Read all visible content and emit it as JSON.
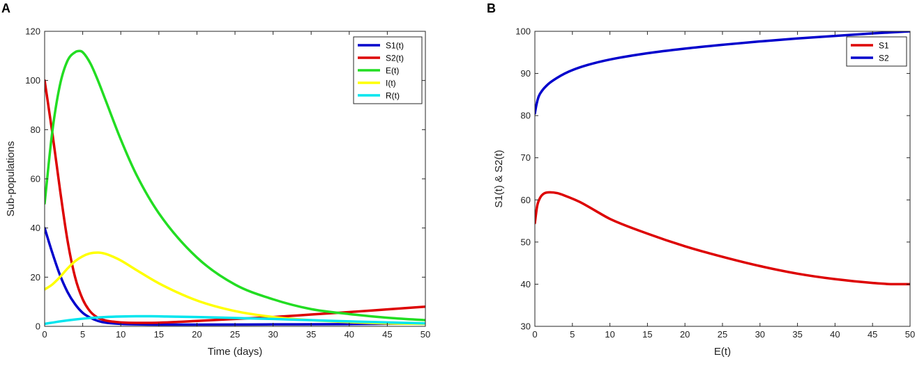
{
  "chart_data": [
    {
      "panel": "A",
      "type": "line",
      "title": "",
      "xlabel": "Time (days)",
      "ylabel": "Sub-populations",
      "xlim": [
        0,
        50
      ],
      "ylim": [
        0,
        120
      ],
      "xticks": [
        0,
        5,
        10,
        15,
        20,
        25,
        30,
        35,
        40,
        45,
        50
      ],
      "yticks": [
        0,
        20,
        40,
        60,
        80,
        100,
        120
      ],
      "legend_position": "top-right",
      "grid": false,
      "series": [
        {
          "name": "S1(t)",
          "color": "#0000cc",
          "x": [
            0,
            1,
            2,
            3,
            4,
            5,
            6,
            7,
            8,
            10,
            12,
            15,
            20,
            30,
            40,
            50
          ],
          "y": [
            40,
            30,
            21,
            14,
            9,
            5.5,
            3.5,
            2.2,
            1.5,
            1,
            0.8,
            0.7,
            0.7,
            0.8,
            0.9,
            1.2
          ]
        },
        {
          "name": "S2(t)",
          "color": "#dd0000",
          "x": [
            0,
            1,
            2,
            3,
            4,
            5,
            6,
            7,
            8,
            9,
            10,
            12,
            15,
            20,
            25,
            30,
            35,
            40,
            45,
            50
          ],
          "y": [
            100,
            79,
            56,
            35,
            20,
            11,
            6,
            3.5,
            2.4,
            1.9,
            1.6,
            1.4,
            1.5,
            2.2,
            3,
            3.8,
            4.8,
            5.8,
            6.9,
            8
          ]
        },
        {
          "name": "E(t)",
          "color": "#22dd22",
          "x": [
            0,
            1,
            2,
            3,
            4,
            4.6,
            5,
            6,
            7,
            8,
            10,
            12,
            15,
            20,
            25,
            30,
            35,
            40,
            45,
            50
          ],
          "y": [
            50,
            79,
            98,
            108,
            111.5,
            112,
            111.5,
            107,
            100,
            92,
            76,
            62,
            46,
            28,
            17,
            11,
            7,
            5,
            3.5,
            2.5
          ]
        },
        {
          "name": "I(t)",
          "color": "#ffff00",
          "x": [
            0,
            1,
            2,
            3,
            4,
            5,
            6,
            7,
            8,
            9,
            10,
            12,
            15,
            20,
            25,
            30,
            35,
            40,
            45,
            50
          ],
          "y": [
            15,
            17,
            20,
            23.5,
            26.5,
            28.5,
            29.7,
            30,
            29.5,
            28.3,
            26.8,
            23,
            17.5,
            10.5,
            6.2,
            3.8,
            2.5,
            1.7,
            1.2,
            1
          ]
        },
        {
          "name": "R(t)",
          "color": "#00e5ee",
          "x": [
            0,
            2,
            4,
            6,
            8,
            10,
            12,
            14,
            16,
            20,
            25,
            30,
            35,
            40,
            45,
            50
          ],
          "y": [
            1,
            2,
            2.8,
            3.4,
            3.8,
            4,
            4.1,
            4.1,
            4,
            3.8,
            3.4,
            3,
            2.5,
            2,
            1.6,
            1.2
          ]
        }
      ]
    },
    {
      "panel": "B",
      "type": "line",
      "title": "",
      "xlabel": "E(t)",
      "ylabel": "S1(t) & S2(t)",
      "xlim": [
        0,
        50
      ],
      "ylim": [
        30,
        100
      ],
      "xticks": [
        0,
        5,
        10,
        15,
        20,
        25,
        30,
        35,
        40,
        45,
        50
      ],
      "yticks": [
        30,
        40,
        50,
        60,
        70,
        80,
        90,
        100
      ],
      "legend_position": "top-right",
      "grid": false,
      "series": [
        {
          "name": "S1",
          "color": "#dd0000",
          "x": [
            0,
            0.3,
            0.7,
            1.2,
            2,
            3,
            4,
            6,
            8,
            10,
            15,
            20,
            25,
            30,
            35,
            40,
            45,
            48,
            50
          ],
          "y": [
            54.5,
            58.5,
            60.5,
            61.5,
            61.8,
            61.6,
            61,
            59.5,
            57.5,
            55.5,
            52,
            49,
            46.5,
            44.3,
            42.5,
            41.2,
            40.3,
            40,
            40
          ]
        },
        {
          "name": "S2",
          "color": "#0000cc",
          "x": [
            0,
            0.2,
            0.5,
            1,
            1.5,
            2,
            3,
            4,
            5,
            7,
            10,
            15,
            20,
            25,
            30,
            35,
            40,
            45,
            50
          ],
          "y": [
            80.5,
            82.5,
            84.5,
            86,
            87,
            87.8,
            89,
            90,
            90.8,
            92,
            93.3,
            94.8,
            95.9,
            96.8,
            97.6,
            98.3,
            98.9,
            99.5,
            100
          ]
        }
      ]
    }
  ]
}
